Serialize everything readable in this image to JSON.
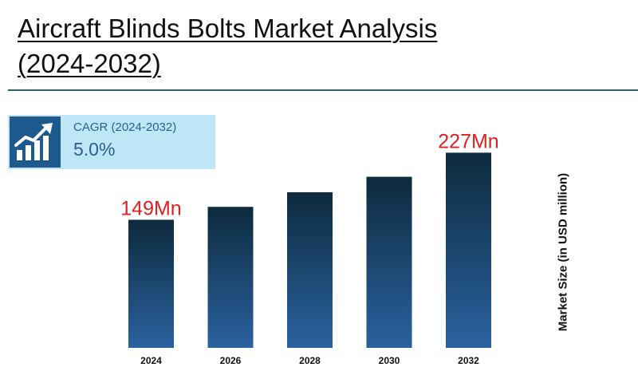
{
  "header": {
    "title_line1": "Aircraft Blinds Bolts Market Analysis",
    "title_line2": "(2024-2032)"
  },
  "cagr": {
    "label": "CAGR (2024-2032)",
    "value": "5.0%",
    "icon": "growth-chart-icon"
  },
  "chart_data": {
    "type": "bar",
    "categories": [
      "2024",
      "2026",
      "2028",
      "2030",
      "2032"
    ],
    "values": [
      149,
      164,
      181,
      199,
      227
    ],
    "data_labels": [
      "149Mn",
      "",
      "",
      "",
      "227Mn"
    ],
    "ylabel": "Market Size (in USD million)",
    "ylim": [
      0,
      232
    ],
    "grid": false,
    "colors": {
      "bar_top": "#0d2a3d",
      "bar_bottom": "#2a62a0",
      "label": "#e02020"
    }
  }
}
